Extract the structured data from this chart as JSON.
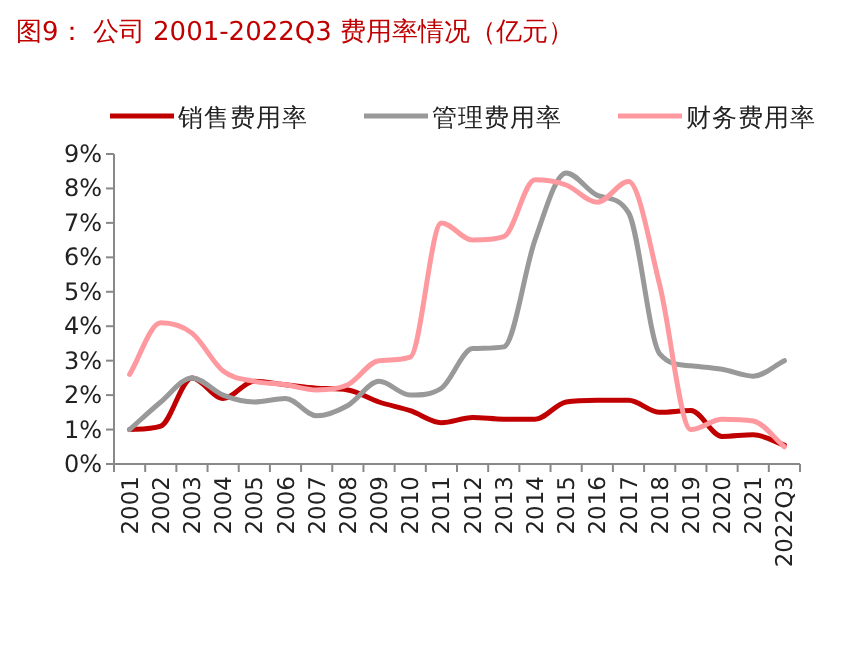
{
  "chart_data": {
    "type": "line",
    "title": "图9：  公司 2001-2022Q3 费用率情况（亿元）",
    "categories": [
      "2001",
      "2002",
      "2003",
      "2004",
      "2005",
      "2006",
      "2007",
      "2008",
      "2009",
      "2010",
      "2011",
      "2012",
      "2013",
      "2014",
      "2015",
      "2016",
      "2017",
      "2018",
      "2019",
      "2020",
      "2021",
      "2022Q3"
    ],
    "series": [
      {
        "name": "销售费用率",
        "color": "#c00000",
        "values": [
          1.0,
          1.1,
          2.5,
          1.9,
          2.4,
          2.3,
          2.2,
          2.15,
          1.8,
          1.55,
          1.2,
          1.35,
          1.3,
          1.3,
          1.8,
          1.85,
          1.85,
          1.5,
          1.55,
          0.8,
          0.85,
          0.55
        ]
      },
      {
        "name": "管理费用率",
        "color": "#999999",
        "values": [
          1.0,
          1.8,
          2.5,
          2.0,
          1.8,
          1.9,
          1.4,
          1.7,
          2.4,
          2.0,
          2.2,
          3.35,
          3.4,
          6.5,
          8.45,
          7.8,
          7.3,
          3.2,
          2.85,
          2.75,
          2.55,
          3.0
        ]
      },
      {
        "name": "财务费用率",
        "color": "#ff99a0",
        "values": [
          2.6,
          4.1,
          3.8,
          2.7,
          2.4,
          2.3,
          2.15,
          2.3,
          3.0,
          3.1,
          7.0,
          6.5,
          6.6,
          8.25,
          8.1,
          7.6,
          8.2,
          5.2,
          1.0,
          1.3,
          1.25,
          0.5
        ]
      }
    ],
    "ylim": [
      0,
      9
    ],
    "yticks": [
      {
        "value": 0,
        "label": "0%"
      },
      {
        "value": 1,
        "label": "1%"
      },
      {
        "value": 2,
        "label": "2%"
      },
      {
        "value": 3,
        "label": "3%"
      },
      {
        "value": 4,
        "label": "4%"
      },
      {
        "value": 5,
        "label": "5%"
      },
      {
        "value": 6,
        "label": "6%"
      },
      {
        "value": 7,
        "label": "7%"
      },
      {
        "value": 8,
        "label": "8%"
      },
      {
        "value": 9,
        "label": "9%"
      }
    ],
    "grid": false,
    "legend": "top",
    "marker": "none",
    "line_style": "solid"
  }
}
